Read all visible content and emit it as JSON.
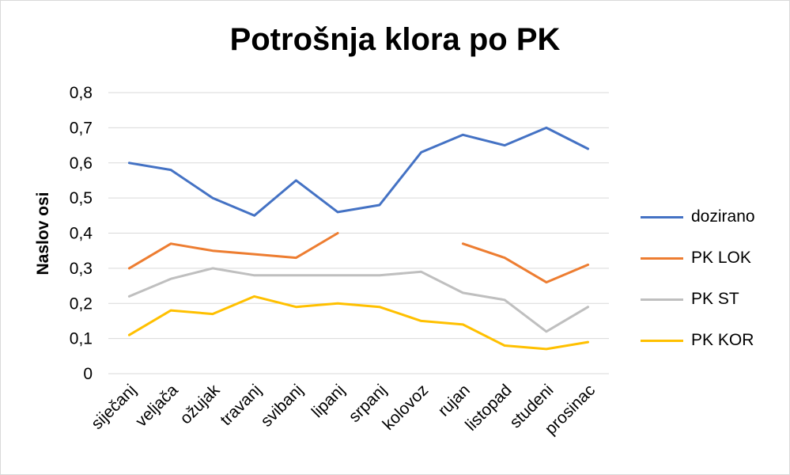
{
  "chart_data": {
    "type": "line",
    "title": "Potrošnja klora po PK",
    "xlabel": "",
    "ylabel": "Naslov osi",
    "ylim": [
      0,
      0.8
    ],
    "ytick_labels": [
      "0",
      "0,1",
      "0,2",
      "0,3",
      "0,4",
      "0,5",
      "0,6",
      "0,7",
      "0,8"
    ],
    "yticks": [
      0,
      0.1,
      0.2,
      0.3,
      0.4,
      0.5,
      0.6,
      0.7,
      0.8
    ],
    "grid": true,
    "legend_position": "right",
    "categories": [
      "siječanj",
      "veljača",
      "ožujak",
      "travanj",
      "svibanj",
      "lipanj",
      "srpanj",
      "kolovoz",
      "rujan",
      "listopad",
      "studeni",
      "prosinac"
    ],
    "series": [
      {
        "name": "dozirano",
        "color": "#4472C4",
        "values": [
          0.6,
          0.58,
          0.5,
          0.45,
          0.55,
          0.46,
          0.48,
          0.63,
          0.68,
          0.65,
          0.7,
          0.64
        ]
      },
      {
        "name": "PK LOK",
        "color": "#ED7D31",
        "values": [
          0.3,
          0.37,
          0.35,
          0.34,
          0.33,
          0.4,
          null,
          null,
          0.37,
          0.33,
          0.26,
          0.31
        ]
      },
      {
        "name": "PK ST",
        "color": "#BFBFBF",
        "values": [
          0.22,
          0.27,
          0.3,
          0.28,
          0.28,
          0.28,
          0.28,
          0.29,
          0.23,
          0.21,
          0.12,
          0.19
        ]
      },
      {
        "name": "PK KOR",
        "color": "#FFC000",
        "values": [
          0.11,
          0.18,
          0.17,
          0.22,
          0.19,
          0.2,
          0.19,
          0.15,
          0.14,
          0.08,
          0.07,
          0.09
        ]
      }
    ]
  }
}
